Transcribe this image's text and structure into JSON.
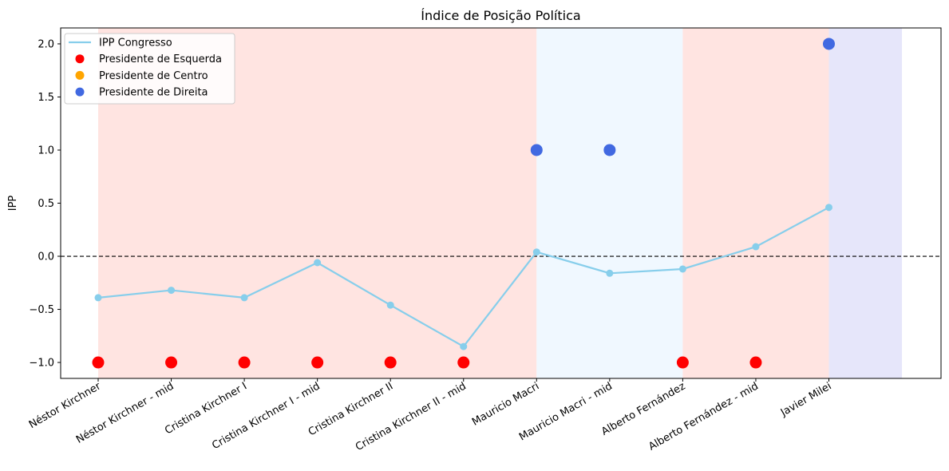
{
  "chart_data": {
    "type": "line",
    "title": "Índice de Posição Política",
    "xlabel": "",
    "ylabel": "IPP",
    "categories": [
      "Néstor Kirchner",
      "Néstor Kirchner - mid",
      "Cristina Kirchner I",
      "Cristina Kirchner I - mid",
      "Cristina Kirchner II",
      "Cristina Kirchner II - mid",
      "Mauricio Macri",
      "Mauricio Macri - mid",
      "Alberto Fernández",
      "Alberto Fernández - mid",
      "Javier Milei"
    ],
    "ylim": [
      -1.15,
      2.15
    ],
    "yticks": [
      "−1.0",
      "−0.5",
      "0.0",
      "0.5",
      "1.0",
      "1.5",
      "2.0"
    ],
    "ytick_values": [
      -1.0,
      -0.5,
      0.0,
      0.5,
      1.0,
      1.5,
      2.0
    ],
    "reference_line": 0.0,
    "series": [
      {
        "name": "IPP Congresso",
        "color": "#87ceeb",
        "values": [
          -0.39,
          -0.32,
          -0.39,
          -0.06,
          -0.46,
          -0.85,
          0.04,
          -0.16,
          -0.12,
          0.09,
          0.46
        ]
      }
    ],
    "president_markers": {
      "values": [
        -1,
        -1,
        -1,
        -1,
        -1,
        -1,
        1,
        1,
        -1,
        -1,
        2
      ],
      "colors": [
        "#ff0000",
        "#ff0000",
        "#ff0000",
        "#ff0000",
        "#ff0000",
        "#ff0000",
        "#4169e1",
        "#4169e1",
        "#ff0000",
        "#ff0000",
        "#4169e1"
      ]
    },
    "background_bands": [
      {
        "from": 0,
        "to": 6,
        "color": "#ffe4e1"
      },
      {
        "from": 6,
        "to": 8,
        "color": "#f0f8ff"
      },
      {
        "from": 8,
        "to": 10,
        "color": "#ffe4e1"
      },
      {
        "from": 10,
        "to": 11,
        "color": "#e6e6fa"
      }
    ],
    "legend": {
      "placement": "top-left",
      "entries": [
        {
          "label": "IPP Congresso",
          "kind": "line",
          "color": "#87ceeb"
        },
        {
          "label": "Presidente de Esquerda",
          "kind": "dot",
          "color": "#ff0000"
        },
        {
          "label": "Presidente de Centro",
          "kind": "dot",
          "color": "#ffa500"
        },
        {
          "label": "Presidente de Direita",
          "kind": "dot",
          "color": "#4169e1"
        }
      ]
    }
  }
}
